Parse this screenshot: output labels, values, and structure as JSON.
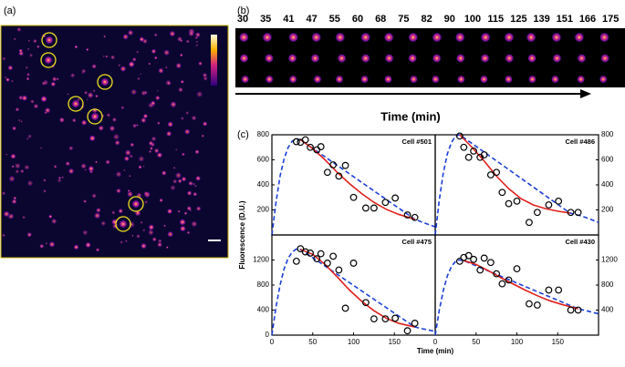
{
  "panel_a": {
    "label": "(a)"
  },
  "panel_b": {
    "label": "(b)",
    "times": [
      30,
      35,
      41,
      47,
      55,
      60,
      68,
      75,
      82,
      90,
      100,
      115,
      125,
      139,
      151,
      166,
      175
    ],
    "axis_label": "Time (min)"
  },
  "panel_c": {
    "label": "(c)",
    "y_label": "Fluorescence (D.U.)",
    "x_label": "Time (min)"
  },
  "chart_data": [
    {
      "type": "scatter",
      "title": "Cell #501",
      "xlim": [
        0,
        200
      ],
      "ylim": [
        0,
        800
      ],
      "yticks": [
        200,
        400,
        600,
        800
      ],
      "x": [
        30,
        35,
        41,
        47,
        55,
        60,
        68,
        75,
        82,
        90,
        100,
        115,
        125,
        139,
        151,
        166,
        175
      ],
      "values": [
        745,
        740,
        760,
        700,
        680,
        705,
        500,
        560,
        470,
        555,
        300,
        215,
        215,
        260,
        295,
        160,
        140
      ],
      "fit": {
        "color": "#e0201c",
        "x": [
          35,
          50,
          65,
          80,
          95,
          110,
          125,
          140,
          155,
          175
        ],
        "values": [
          760,
          690,
          600,
          500,
          410,
          330,
          260,
          205,
          165,
          125
        ]
      },
      "model": {
        "color": "#1c3fd8",
        "x": [
          0,
          5,
          10,
          15,
          20,
          25,
          30,
          35,
          175,
          185,
          200
        ],
        "values": [
          0,
          260,
          470,
          610,
          700,
          750,
          765,
          760,
          125,
          100,
          65
        ]
      }
    },
    {
      "type": "scatter",
      "title": "Cell #486",
      "xlim": [
        0,
        200
      ],
      "ylim": [
        0,
        800
      ],
      "yticks": [
        200,
        400,
        600,
        800
      ],
      "x": [
        30,
        35,
        41,
        47,
        55,
        60,
        68,
        75,
        82,
        90,
        100,
        115,
        125,
        139,
        151,
        166,
        175
      ],
      "values": [
        790,
        700,
        620,
        670,
        620,
        640,
        480,
        500,
        340,
        250,
        270,
        100,
        180,
        240,
        270,
        180,
        180
      ],
      "fit": {
        "color": "#e0201c",
        "x": [
          30,
          45,
          60,
          75,
          90,
          105,
          120,
          135,
          150,
          165
        ],
        "values": [
          800,
          700,
          590,
          470,
          370,
          290,
          240,
          210,
          190,
          175
        ]
      },
      "model": {
        "color": "#1c3fd8",
        "x": [
          0,
          5,
          10,
          15,
          20,
          25,
          30,
          165,
          180,
          200
        ],
        "values": [
          0,
          280,
          500,
          650,
          740,
          790,
          800,
          175,
          150,
          100
        ]
      }
    },
    {
      "type": "scatter",
      "title": "Cell #475",
      "xlim": [
        0,
        200
      ],
      "ylim": [
        0,
        1600
      ],
      "yticks": [
        0,
        400,
        800,
        1200
      ],
      "xticks": [
        0,
        50,
        100,
        150
      ],
      "x": [
        30,
        35,
        41,
        47,
        55,
        60,
        68,
        75,
        82,
        90,
        100,
        115,
        125,
        139,
        151,
        166,
        175
      ],
      "values": [
        1180,
        1380,
        1330,
        1310,
        1220,
        1300,
        1150,
        1260,
        1040,
        430,
        1150,
        520,
        260,
        260,
        270,
        70,
        190
      ],
      "fit": {
        "color": "#e0201c",
        "x": [
          35,
          50,
          65,
          80,
          95,
          110,
          125,
          140,
          155,
          175
        ],
        "values": [
          1370,
          1290,
          1130,
          930,
          720,
          540,
          390,
          270,
          190,
          130
        ]
      },
      "model": {
        "color": "#1c3fd8",
        "x": [
          0,
          5,
          10,
          15,
          20,
          25,
          30,
          35,
          175,
          185,
          200
        ],
        "values": [
          0,
          450,
          800,
          1060,
          1230,
          1330,
          1375,
          1370,
          130,
          100,
          60
        ]
      }
    },
    {
      "type": "scatter",
      "title": "Cell #430",
      "xlim": [
        0,
        200
      ],
      "ylim": [
        0,
        1600
      ],
      "yticks": [
        400,
        800,
        1200
      ],
      "xticks": [
        0,
        50,
        100,
        150
      ],
      "x": [
        30,
        35,
        41,
        47,
        55,
        60,
        68,
        75,
        82,
        90,
        100,
        115,
        125,
        139,
        151,
        166,
        175
      ],
      "values": [
        1180,
        1240,
        1270,
        1210,
        1040,
        1230,
        1160,
        980,
        820,
        880,
        1060,
        500,
        480,
        720,
        720,
        400,
        400
      ],
      "fit": {
        "color": "#e0201c",
        "x": [
          35,
          50,
          65,
          80,
          95,
          110,
          125,
          140,
          155,
          175
        ],
        "values": [
          1190,
          1130,
          1030,
          920,
          820,
          720,
          630,
          550,
          490,
          420
        ]
      },
      "model": {
        "color": "#1c3fd8",
        "x": [
          0,
          5,
          10,
          15,
          20,
          25,
          30,
          35,
          175,
          185,
          200
        ],
        "values": [
          0,
          400,
          720,
          950,
          1100,
          1180,
          1200,
          1190,
          420,
          390,
          340
        ]
      }
    }
  ]
}
